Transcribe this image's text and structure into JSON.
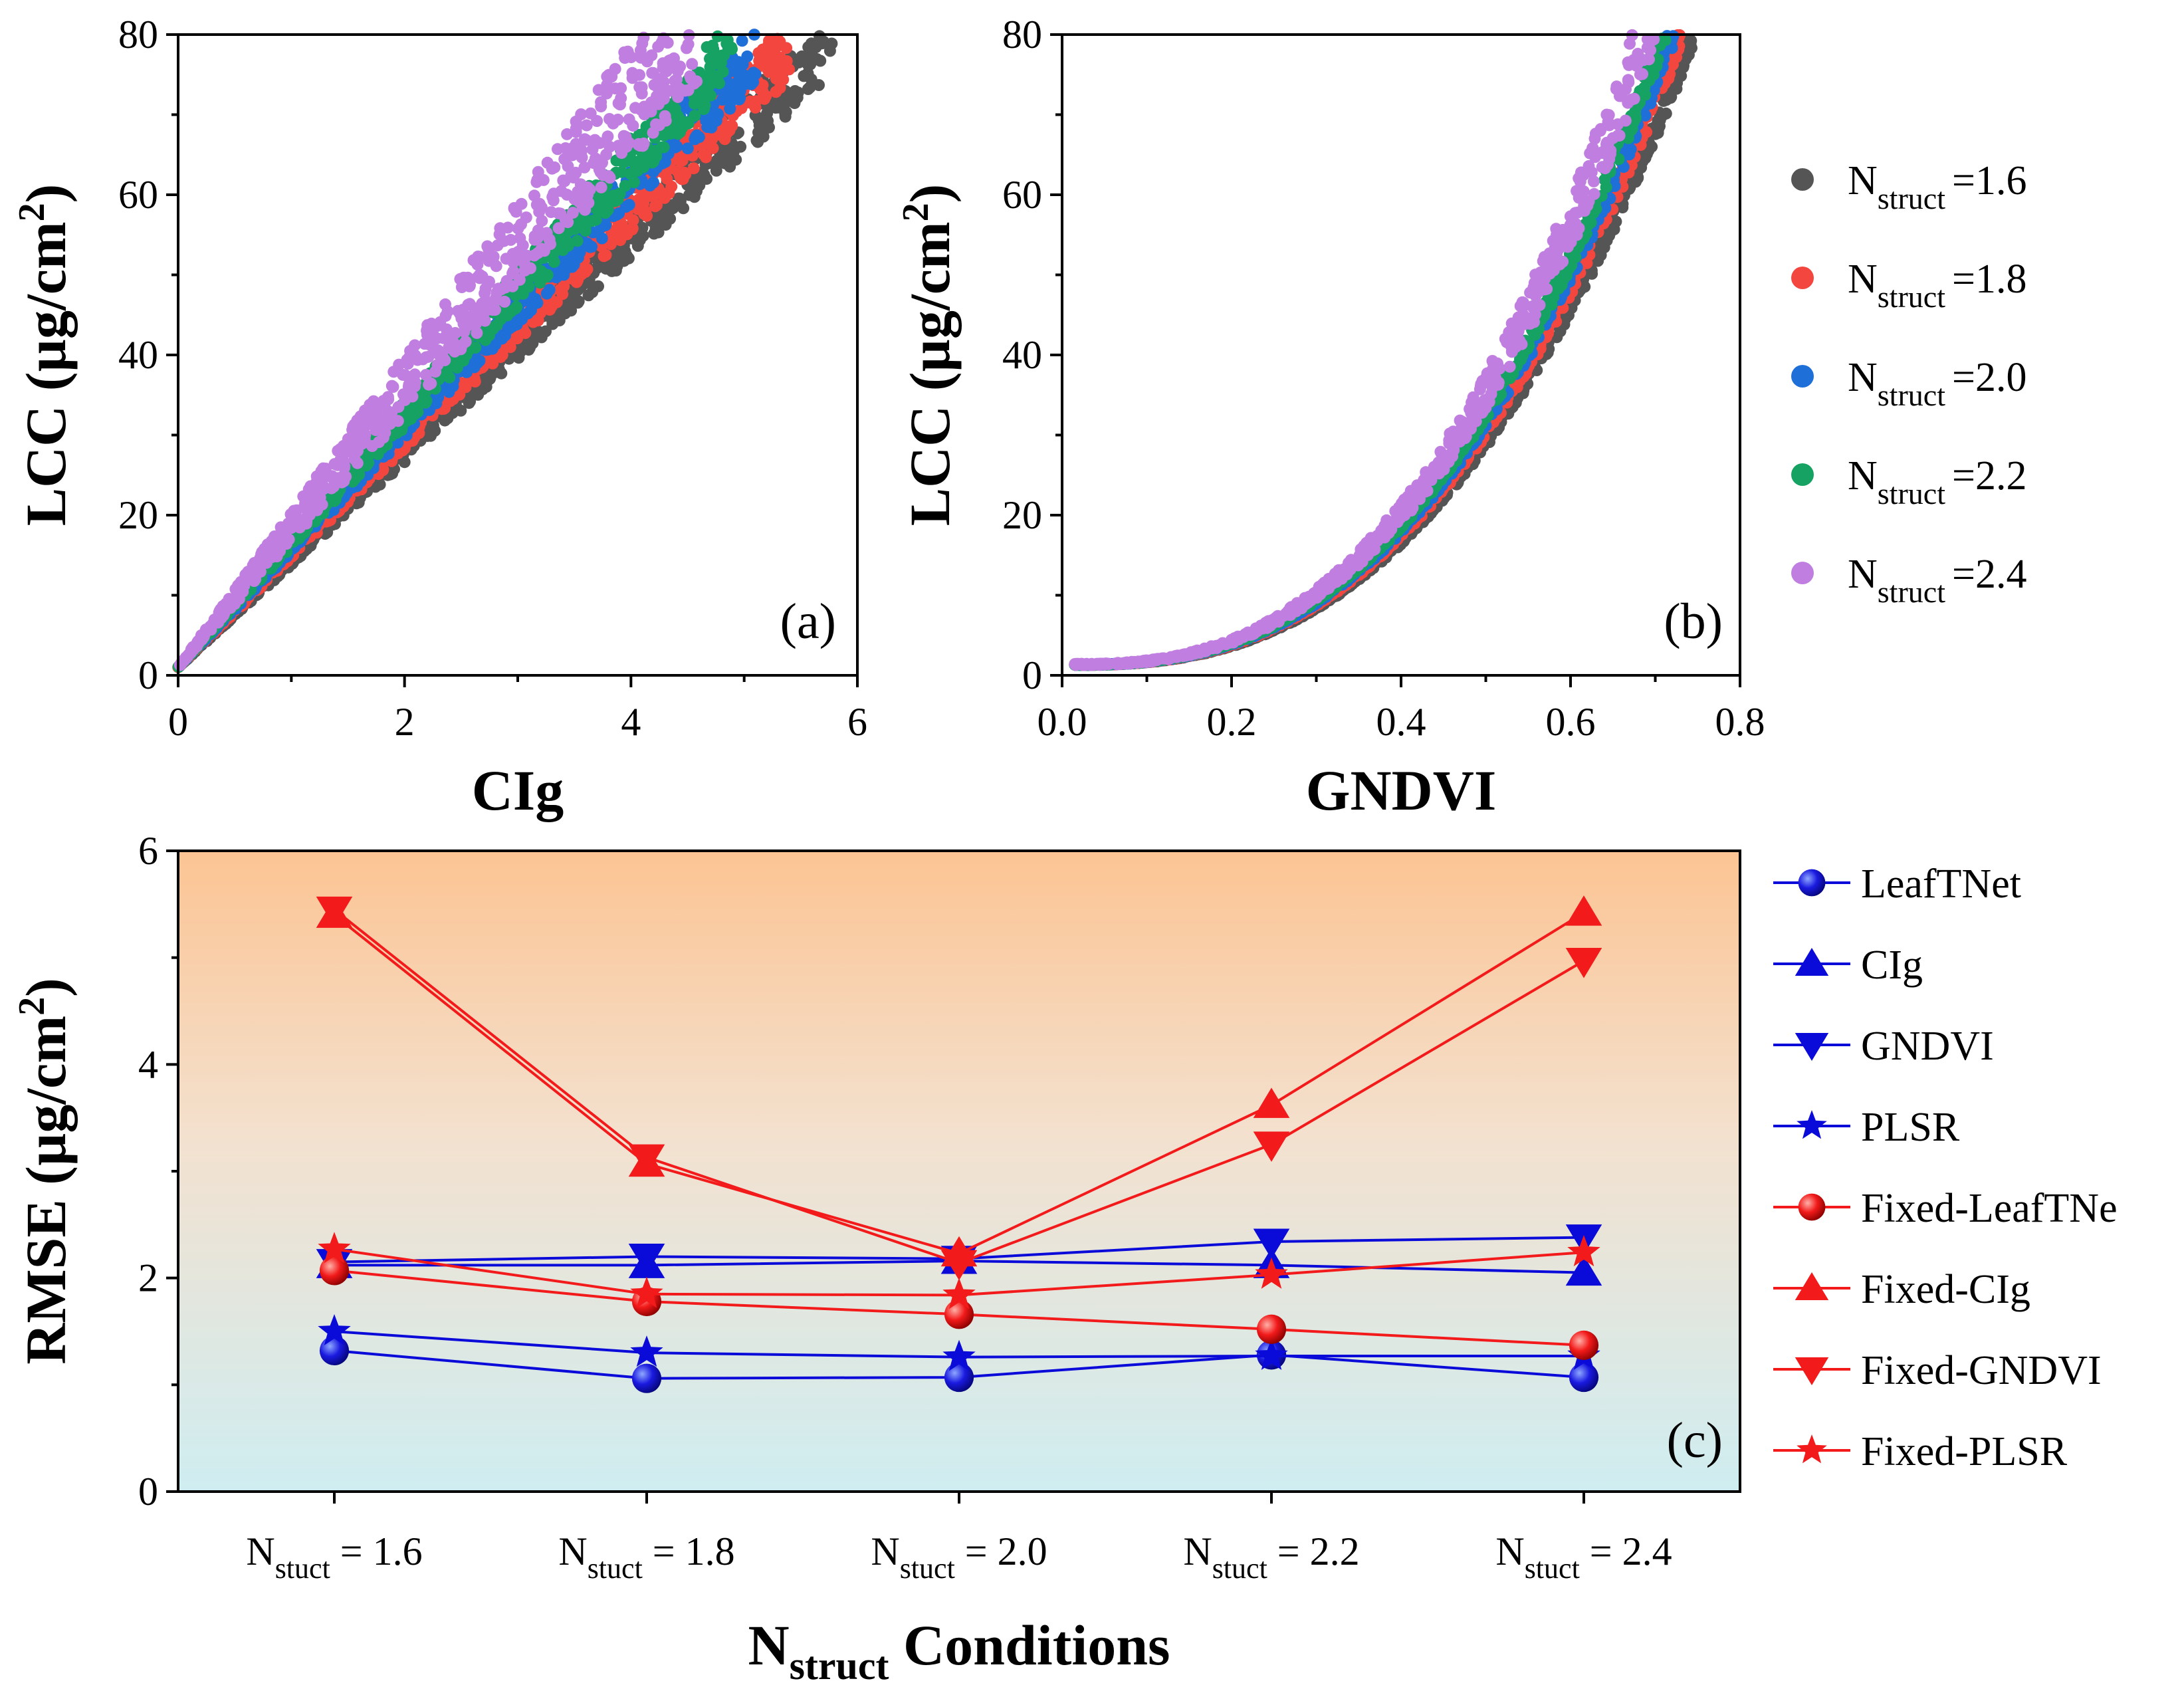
{
  "chart_data": [
    {
      "panel": "a",
      "type": "scatter",
      "panel_label": "(a)",
      "xlabel": "CIg",
      "ylabel": "LCC (µg/cm",
      "ylabel_sup": "2",
      "ylabel_end": ")",
      "xlim": [
        0,
        6
      ],
      "ylim": [
        0,
        80
      ],
      "xticks": [
        "0",
        "2",
        "4",
        "6"
      ],
      "yticks": [
        "0",
        "20",
        "40",
        "60",
        "80"
      ],
      "series": [
        {
          "name": "Nstruct=1.6",
          "color": "#555555",
          "x_end": 5.8,
          "slope_lo": 12.8,
          "slope_hi": 14.2
        },
        {
          "name": "Nstruct=1.8",
          "color": "#f2463f",
          "x_end": 5.4,
          "slope_lo": 13.6,
          "slope_hi": 15.0
        },
        {
          "name": "Nstruct=2.0",
          "color": "#1f6fd9",
          "x_end": 5.1,
          "slope_lo": 14.3,
          "slope_hi": 15.8
        },
        {
          "name": "Nstruct=2.2",
          "color": "#16a262",
          "x_end": 4.9,
          "slope_lo": 15.0,
          "slope_hi": 16.6
        },
        {
          "name": "Nstruct=2.4",
          "color": "#c07ee0",
          "x_end": 4.6,
          "slope_lo": 15.8,
          "slope_hi": 19.5
        }
      ]
    },
    {
      "panel": "b",
      "type": "scatter",
      "panel_label": "(b)",
      "xlabel": "GNDVI",
      "ylabel": "LCC (µg/cm",
      "ylabel_sup": "2",
      "ylabel_end": ")",
      "xlim": [
        0,
        0.8
      ],
      "ylim": [
        0,
        80
      ],
      "xticks": [
        "0.0",
        "0.2",
        "0.4",
        "0.6",
        "0.8"
      ],
      "yticks": [
        "0",
        "20",
        "40",
        "60",
        "80"
      ],
      "series": [
        {
          "name": "Nstruct=1.6",
          "color": "#555555",
          "x_end": 0.75
        },
        {
          "name": "Nstruct=1.8",
          "color": "#f2463f",
          "x_end": 0.735
        },
        {
          "name": "Nstruct=2.0",
          "color": "#1f6fd9",
          "x_end": 0.725
        },
        {
          "name": "Nstruct=2.2",
          "color": "#16a262",
          "x_end": 0.715
        },
        {
          "name": "Nstruct=2.4",
          "color": "#c07ee0",
          "x_end": 0.7
        }
      ]
    },
    {
      "panel": "c",
      "type": "line",
      "panel_label": "(c)",
      "xlabel_main": "N",
      "xlabel_sub": "struct",
      "xlabel_end": " Conditions",
      "ylabel": "RMSE (µg/cm",
      "ylabel_sup": "2",
      "ylabel_end": ")",
      "ylim": [
        0,
        6
      ],
      "yticks": [
        "0",
        "2",
        "4",
        "6"
      ],
      "categories": [
        "1.6",
        "1.8",
        "2.0",
        "2.2",
        "2.4"
      ],
      "category_prefix": "N",
      "category_sub": "stuct",
      "category_eq": " = ",
      "series": [
        {
          "name": "LeafTNet",
          "color": "#0b0bd9",
          "marker": "circle",
          "values": [
            1.32,
            1.06,
            1.07,
            1.28,
            1.07
          ]
        },
        {
          "name": "CIg",
          "color": "#0b0bd9",
          "marker": "triangle-up",
          "values": [
            2.12,
            2.12,
            2.16,
            2.12,
            2.05
          ]
        },
        {
          "name": "GNDVI",
          "color": "#0b0bd9",
          "marker": "triangle-down",
          "values": [
            2.15,
            2.2,
            2.18,
            2.34,
            2.38
          ]
        },
        {
          "name": "PLSR",
          "color": "#0b0bd9",
          "marker": "star",
          "values": [
            1.5,
            1.3,
            1.26,
            1.27,
            1.27
          ]
        },
        {
          "name": "Fixed-LeafTNe",
          "color": "#f21a1a",
          "marker": "circle",
          "values": [
            2.07,
            1.78,
            1.66,
            1.52,
            1.37
          ]
        },
        {
          "name": "Fixed-CIg",
          "color": "#f21a1a",
          "marker": "triangle-up",
          "values": [
            5.4,
            3.07,
            2.23,
            3.62,
            5.42
          ]
        },
        {
          "name": "Fixed-GNDVI",
          "color": "#f21a1a",
          "marker": "triangle-down",
          "values": [
            5.45,
            3.13,
            2.14,
            3.25,
            4.97
          ]
        },
        {
          "name": "Fixed-PLSR",
          "color": "#f21a1a",
          "marker": "star",
          "values": [
            2.27,
            1.85,
            1.84,
            2.03,
            2.24
          ]
        }
      ]
    }
  ],
  "legend_top": {
    "prefix": "N",
    "sub": "struct",
    "items": [
      "=1.6",
      "=1.8",
      "=2.0",
      "=2.2",
      "=2.4"
    ],
    "colors": [
      "#555555",
      "#f2463f",
      "#1f6fd9",
      "#16a262",
      "#c07ee0"
    ]
  }
}
